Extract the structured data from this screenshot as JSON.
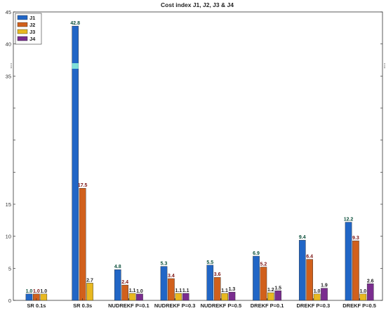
{
  "chart_data": {
    "type": "bar",
    "title": "Cost index J1, J2, J3 & J4",
    "xlabel": "",
    "ylabel": "",
    "categories": [
      "SR 0.1s",
      "SR 0.3s",
      "NUDREKF P=0.1",
      "NUDREKF P=0.3",
      "NUDREKF P=0.5",
      "DREKF P=0.1",
      "DREKF P=0.3",
      "DREKF P=0.5"
    ],
    "series": [
      {
        "name": "J1",
        "color": "#2166c6",
        "values": [
          1.0,
          42.8,
          4.8,
          5.3,
          5.5,
          6.9,
          9.4,
          12.2
        ]
      },
      {
        "name": "J2",
        "color": "#d1601c",
        "values": [
          1.0,
          17.5,
          2.4,
          3.4,
          3.6,
          5.2,
          6.4,
          9.3
        ]
      },
      {
        "name": "J3",
        "color": "#e8b820",
        "values": [
          1.0,
          2.7,
          1.1,
          1.1,
          1.1,
          1.2,
          1.0,
          1.0
        ]
      },
      {
        "name": "J4",
        "color": "#7a2d8f",
        "values": [
          null,
          null,
          1.0,
          1.1,
          1.3,
          1.5,
          1.9,
          2.6
        ]
      }
    ],
    "data_labels": [
      [
        "1.0",
        "1.0",
        "1.0",
        null
      ],
      [
        "42.8",
        "17.5",
        "2.7",
        null
      ],
      [
        "4.8",
        "2.4",
        "1.1",
        "1.0"
      ],
      [
        "5.3",
        "3.4",
        "1.1",
        "1.1"
      ],
      [
        "5.5",
        "3.6",
        "1.1",
        "1.3"
      ],
      [
        "6.9",
        "5.2",
        "1.2",
        "1.5"
      ],
      [
        "9.4",
        "6.4",
        "1.0",
        "1.9"
      ],
      [
        "12.2",
        "9.3",
        "1.0",
        "2.6"
      ]
    ],
    "data_label_colors": [
      "#0b4f3a",
      "#7a1111",
      "#222222",
      "#222222"
    ],
    "ylim": [
      0,
      45
    ],
    "yticks": [
      0,
      5,
      10,
      15,
      20,
      25,
      30,
      35,
      40,
      45
    ],
    "ytick_labels": [
      "0",
      "5",
      "10",
      "15",
      "",
      "",
      "",
      "35",
      "40",
      "45"
    ],
    "axis_break": {
      "label": "⋮",
      "color": "#7fe0d8"
    },
    "legend": {
      "placement": "top-left",
      "entries": [
        "J1",
        "J2",
        "J3",
        "J4"
      ]
    },
    "grid": false
  }
}
